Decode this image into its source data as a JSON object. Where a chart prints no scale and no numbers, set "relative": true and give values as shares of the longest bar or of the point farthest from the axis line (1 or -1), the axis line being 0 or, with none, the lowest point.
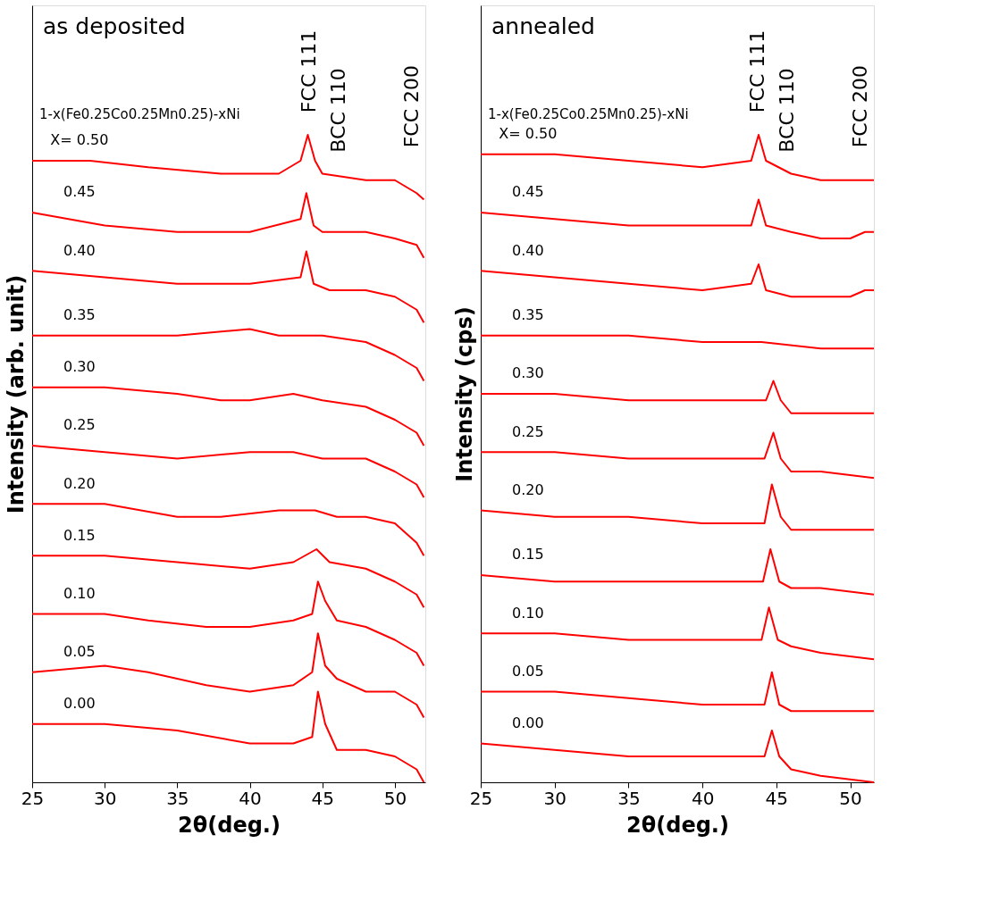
{
  "chart_data": [
    {
      "type": "line",
      "title": "as deposited",
      "xlabel": "2θ(deg.)",
      "ylabel": "Intensity (arb. unit)",
      "relative": true,
      "tick_labels": "x",
      "marker": "none",
      "line_style": "solid",
      "xlim": [
        25,
        52.1
      ],
      "xticks": [
        25,
        30,
        35,
        40,
        45,
        50
      ],
      "annotations": [
        "1-x(Fe0.25Co0.25Mn0.25)-xNi",
        "FCC 111",
        "BCC 110",
        "FCC 200"
      ],
      "series": [
        {
          "name": "X= 0.50",
          "color": "#ff0000",
          "x": [
            25,
            29,
            33,
            38,
            42,
            43.5,
            44,
            44.5,
            45,
            48,
            50,
            51.5,
            52
          ],
          "values": [
            0.96,
            0.96,
            0.95,
            0.94,
            0.94,
            0.96,
            1.0,
            0.96,
            0.94,
            0.93,
            0.93,
            0.91,
            0.9
          ]
        },
        {
          "name": "0.45",
          "color": "#ff0000",
          "x": [
            25,
            30,
            35,
            40,
            43.5,
            43.9,
            44.4,
            45,
            48,
            50,
            51.5,
            52
          ],
          "values": [
            0.88,
            0.86,
            0.85,
            0.85,
            0.87,
            0.91,
            0.86,
            0.85,
            0.85,
            0.84,
            0.83,
            0.81
          ]
        },
        {
          "name": "0.40",
          "color": "#ff0000",
          "x": [
            25,
            30,
            35,
            40,
            43.5,
            43.9,
            44.4,
            45.5,
            48,
            50,
            51.5,
            52
          ],
          "values": [
            0.79,
            0.78,
            0.77,
            0.77,
            0.78,
            0.82,
            0.77,
            0.76,
            0.76,
            0.75,
            0.73,
            0.71
          ]
        },
        {
          "name": "0.35",
          "color": "#ff0000",
          "x": [
            25,
            30,
            35,
            40,
            42,
            45,
            48,
            50,
            51.5,
            52
          ],
          "values": [
            0.69,
            0.69,
            0.69,
            0.7,
            0.69,
            0.69,
            0.68,
            0.66,
            0.64,
            0.62
          ]
        },
        {
          "name": "0.30",
          "color": "#ff0000",
          "x": [
            25,
            30,
            35,
            38,
            40,
            43,
            45,
            48,
            50,
            51.5,
            52
          ],
          "values": [
            0.61,
            0.61,
            0.6,
            0.59,
            0.59,
            0.6,
            0.59,
            0.58,
            0.56,
            0.54,
            0.52
          ]
        },
        {
          "name": "0.25",
          "color": "#ff0000",
          "x": [
            25,
            30,
            35,
            40,
            43,
            45,
            48,
            50,
            51.5,
            52
          ],
          "values": [
            0.52,
            0.51,
            0.5,
            0.51,
            0.51,
            0.5,
            0.5,
            0.48,
            0.46,
            0.44
          ]
        },
        {
          "name": "0.20",
          "color": "#ff0000",
          "x": [
            25,
            30,
            35,
            38,
            42,
            44.5,
            46,
            48,
            50,
            51.5,
            52
          ],
          "values": [
            0.43,
            0.43,
            0.41,
            0.41,
            0.42,
            0.42,
            0.41,
            0.41,
            0.4,
            0.37,
            0.35
          ]
        },
        {
          "name": "0.15",
          "color": "#ff0000",
          "x": [
            25,
            30,
            35,
            40,
            43,
            44.6,
            45.5,
            48,
            50,
            51.5,
            52
          ],
          "values": [
            0.35,
            0.35,
            0.34,
            0.33,
            0.34,
            0.36,
            0.34,
            0.33,
            0.31,
            0.29,
            0.27
          ]
        },
        {
          "name": "0.10",
          "color": "#ff0000",
          "x": [
            25,
            30,
            33,
            37,
            40,
            43,
            44.3,
            44.7,
            45.2,
            46,
            48,
            50,
            51.5,
            52
          ],
          "values": [
            0.26,
            0.26,
            0.25,
            0.24,
            0.24,
            0.25,
            0.26,
            0.31,
            0.28,
            0.25,
            0.24,
            0.22,
            0.2,
            0.18
          ]
        },
        {
          "name": "0.05",
          "color": "#ff0000",
          "x": [
            25,
            30,
            33,
            37,
            40,
            43,
            44.3,
            44.7,
            45.2,
            46,
            48,
            50,
            51.5,
            52
          ],
          "values": [
            0.17,
            0.18,
            0.17,
            0.15,
            0.14,
            0.15,
            0.17,
            0.23,
            0.18,
            0.16,
            0.14,
            0.14,
            0.12,
            0.1
          ]
        },
        {
          "name": "0.00",
          "color": "#ff0000",
          "x": [
            25,
            30,
            35,
            40,
            43,
            44.3,
            44.7,
            45.2,
            46,
            48,
            50,
            51.5,
            52
          ],
          "values": [
            0.09,
            0.09,
            0.08,
            0.06,
            0.06,
            0.07,
            0.14,
            0.09,
            0.05,
            0.05,
            0.04,
            0.02,
            0
          ]
        }
      ]
    },
    {
      "type": "line",
      "title": "annealed",
      "xlabel": "2θ(deg.)",
      "ylabel": "Intensity (cps)",
      "relative": true,
      "tick_labels": "x",
      "marker": "none",
      "line_style": "solid",
      "xlim": [
        25,
        51.6
      ],
      "xticks": [
        25,
        30,
        35,
        40,
        45,
        50
      ],
      "annotations": [
        "1-x(Fe0.25Co0.25Mn0.25)-xNi",
        "FCC 111",
        "BCC 110",
        "FCC 200"
      ],
      "series": [
        {
          "name": "X= 0.50",
          "color": "#ff0000",
          "x": [
            25,
            30,
            35,
            40,
            43.3,
            43.8,
            44.3,
            46,
            48,
            50,
            51.6
          ],
          "values": [
            0.97,
            0.97,
            0.96,
            0.95,
            0.96,
            1.0,
            0.96,
            0.94,
            0.93,
            0.93,
            0.93
          ]
        },
        {
          "name": "0.45",
          "color": "#ff0000",
          "x": [
            25,
            30,
            35,
            40,
            43.3,
            43.8,
            44.3,
            46,
            48,
            50,
            51,
            51.6
          ],
          "values": [
            0.88,
            0.87,
            0.86,
            0.86,
            0.86,
            0.9,
            0.86,
            0.85,
            0.84,
            0.84,
            0.85,
            0.85
          ]
        },
        {
          "name": "0.40",
          "color": "#ff0000",
          "x": [
            25,
            30,
            35,
            40,
            43.3,
            43.8,
            44.3,
            46,
            48,
            50,
            51,
            51.6
          ],
          "values": [
            0.79,
            0.78,
            0.77,
            0.76,
            0.77,
            0.8,
            0.76,
            0.75,
            0.75,
            0.75,
            0.76,
            0.76
          ]
        },
        {
          "name": "0.35",
          "color": "#ff0000",
          "x": [
            25,
            30,
            35,
            40,
            44,
            48,
            51.6
          ],
          "values": [
            0.69,
            0.69,
            0.69,
            0.68,
            0.68,
            0.67,
            0.67
          ]
        },
        {
          "name": "0.30",
          "color": "#ff0000",
          "x": [
            25,
            30,
            35,
            40,
            43.5,
            44,
            44.3,
            44.8,
            45.3,
            46,
            48,
            51.6
          ],
          "values": [
            0.6,
            0.6,
            0.59,
            0.59,
            0.59,
            0.59,
            0.59,
            0.62,
            0.59,
            0.57,
            0.57,
            0.57
          ]
        },
        {
          "name": "0.25",
          "color": "#ff0000",
          "x": [
            25,
            30,
            35,
            40,
            44.2,
            44.8,
            45.3,
            46,
            48,
            51.6
          ],
          "values": [
            0.51,
            0.51,
            0.5,
            0.5,
            0.5,
            0.54,
            0.5,
            0.48,
            0.48,
            0.47
          ]
        },
        {
          "name": "0.20",
          "color": "#ff0000",
          "x": [
            25,
            30,
            35,
            40,
            44.2,
            44.7,
            45.3,
            46,
            48,
            51.6
          ],
          "values": [
            0.42,
            0.41,
            0.41,
            0.4,
            0.4,
            0.46,
            0.41,
            0.39,
            0.39,
            0.39
          ]
        },
        {
          "name": "0.15",
          "color": "#ff0000",
          "x": [
            25,
            30,
            35,
            40,
            44.1,
            44.6,
            45.2,
            46,
            48,
            51.6
          ],
          "values": [
            0.32,
            0.31,
            0.31,
            0.31,
            0.31,
            0.36,
            0.31,
            0.3,
            0.3,
            0.29
          ]
        },
        {
          "name": "0.10",
          "color": "#ff0000",
          "x": [
            25,
            30,
            35,
            40,
            44.0,
            44.5,
            45.1,
            46,
            48,
            51.6
          ],
          "values": [
            0.23,
            0.23,
            0.22,
            0.22,
            0.22,
            0.27,
            0.22,
            0.21,
            0.2,
            0.19
          ]
        },
        {
          "name": "0.05",
          "color": "#ff0000",
          "x": [
            25,
            30,
            35,
            40,
            44.2,
            44.7,
            45.2,
            46,
            48,
            51.6
          ],
          "values": [
            0.14,
            0.14,
            0.13,
            0.12,
            0.12,
            0.17,
            0.12,
            0.11,
            0.11,
            0.11
          ]
        },
        {
          "name": "0.00",
          "color": "#ff0000",
          "x": [
            25,
            30,
            35,
            40,
            44.2,
            44.7,
            45.2,
            46,
            48,
            51.6
          ],
          "values": [
            0.06,
            0.05,
            0.04,
            0.04,
            0.04,
            0.08,
            0.04,
            0.02,
            0.01,
            0
          ]
        }
      ]
    }
  ]
}
